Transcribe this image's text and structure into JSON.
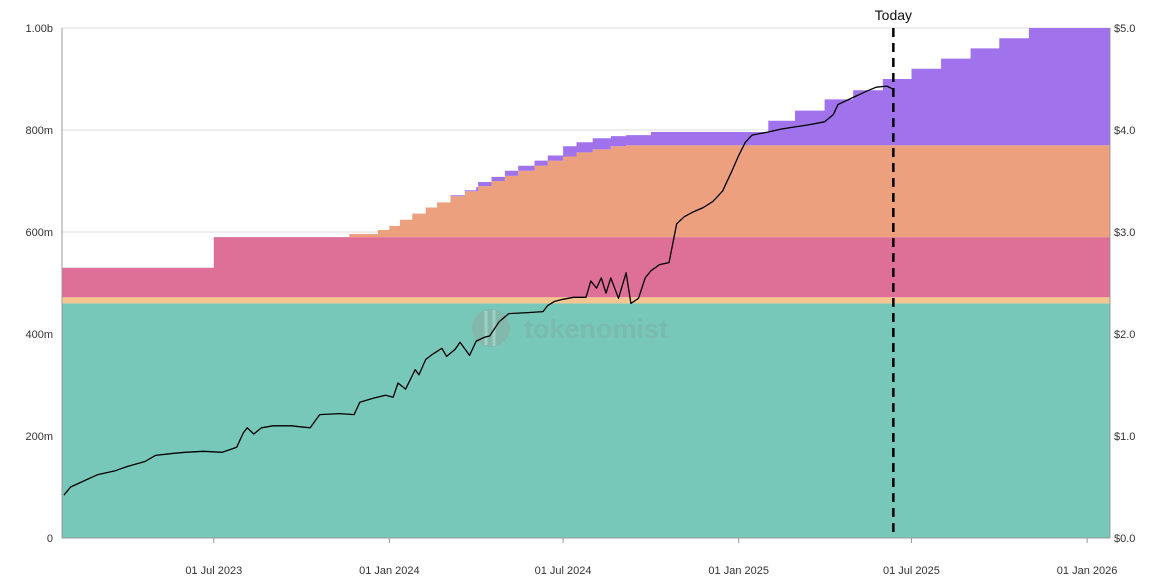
{
  "chart_data": {
    "type": "area",
    "x_axis": {
      "ticks": [
        "01 Jul 2023",
        "01 Jan 2024",
        "01 Jul 2024",
        "01 Jan 2025",
        "01 Jul 2025",
        "01 Jan 2026"
      ],
      "tick_dates": [
        "2023-07-01",
        "2024-01-01",
        "2024-07-01",
        "2025-01-01",
        "2025-07-01",
        "2026-01-01"
      ],
      "range": [
        "2023-01-23",
        "2026-01-25"
      ]
    },
    "y_axis_left": {
      "ticks": [
        "0",
        "200m",
        "400m",
        "600m",
        "800m",
        "1.00b"
      ],
      "tick_values": [
        0,
        200,
        400,
        600,
        800,
        1000
      ],
      "unit": "millions of tokens",
      "range": [
        0,
        1000
      ]
    },
    "y_axis_right": {
      "ticks": [
        "$0.0",
        "$1.0",
        "$2.0",
        "$3.0",
        "$4.0",
        "$5.0"
      ],
      "tick_values": [
        0,
        1,
        2,
        3,
        4,
        5
      ],
      "range": [
        0,
        5
      ]
    },
    "grid": "horizontal",
    "today_marker": {
      "label": "Today",
      "date": "2025-06-12",
      "color": "#000000"
    },
    "watermark": "tokenomist",
    "stacked_series": [
      {
        "color": "#77c8b8",
        "steps": [
          [
            "2023-01-23",
            460
          ]
        ]
      },
      {
        "color": "#f4c58e",
        "steps": [
          [
            "2023-01-23",
            12
          ]
        ]
      },
      {
        "color": "#de6f96",
        "steps": [
          [
            "2023-01-23",
            58
          ],
          [
            "2023-07-01",
            118
          ]
        ]
      },
      {
        "color": "#eda07e",
        "steps": [
          [
            "2023-01-23",
            0
          ],
          [
            "2023-11-20",
            6
          ],
          [
            "2023-12-20",
            14
          ],
          [
            "2024-01-01",
            22
          ],
          [
            "2024-01-12",
            34
          ],
          [
            "2024-01-25",
            46
          ],
          [
            "2024-02-08",
            58
          ],
          [
            "2024-02-20",
            68
          ],
          [
            "2024-03-05",
            80
          ],
          [
            "2024-03-20",
            90
          ],
          [
            "2024-04-03",
            100
          ],
          [
            "2024-04-17",
            110
          ],
          [
            "2024-05-01",
            120
          ],
          [
            "2024-05-15",
            130
          ],
          [
            "2024-06-01",
            140
          ],
          [
            "2024-06-15",
            150
          ],
          [
            "2024-07-01",
            158
          ],
          [
            "2024-07-15",
            166
          ],
          [
            "2024-08-01",
            172
          ],
          [
            "2024-08-20",
            178
          ],
          [
            "2024-09-05",
            180
          ]
        ]
      },
      {
        "color": "#a073ec",
        "steps": [
          [
            "2023-01-23",
            0
          ],
          [
            "2024-03-05",
            2
          ],
          [
            "2024-04-01",
            8
          ],
          [
            "2024-05-01",
            10
          ],
          [
            "2024-07-01",
            20
          ],
          [
            "2024-08-01",
            22
          ],
          [
            "2024-08-20",
            20
          ],
          [
            "2024-09-05",
            20
          ],
          [
            "2024-10-01",
            26
          ],
          [
            "2025-01-15",
            26
          ],
          [
            "2025-02-01",
            48
          ],
          [
            "2025-03-01",
            68
          ],
          [
            "2025-04-01",
            90
          ],
          [
            "2025-05-01",
            108
          ],
          [
            "2025-06-01",
            130
          ],
          [
            "2025-07-01",
            150
          ],
          [
            "2025-08-01",
            170
          ],
          [
            "2025-09-01",
            190
          ],
          [
            "2025-10-01",
            210
          ],
          [
            "2025-11-01",
            230
          ]
        ]
      }
    ],
    "price_series": {
      "axis": "right",
      "color": "#000000",
      "points": [
        [
          "2023-01-25",
          0.42
        ],
        [
          "2023-02-01",
          0.5
        ],
        [
          "2023-02-15",
          0.56
        ],
        [
          "2023-03-01",
          0.62
        ],
        [
          "2023-03-20",
          0.66
        ],
        [
          "2023-04-01",
          0.7
        ],
        [
          "2023-04-20",
          0.75
        ],
        [
          "2023-05-01",
          0.81
        ],
        [
          "2023-05-20",
          0.83
        ],
        [
          "2023-06-01",
          0.84
        ],
        [
          "2023-06-20",
          0.85
        ],
        [
          "2023-07-10",
          0.84
        ],
        [
          "2023-07-25",
          0.89
        ],
        [
          "2023-08-01",
          1.03
        ],
        [
          "2023-08-05",
          1.08
        ],
        [
          "2023-08-12",
          1.02
        ],
        [
          "2023-08-20",
          1.08
        ],
        [
          "2023-09-01",
          1.1
        ],
        [
          "2023-09-20",
          1.1
        ],
        [
          "2023-10-10",
          1.08
        ],
        [
          "2023-10-20",
          1.21
        ],
        [
          "2023-11-10",
          1.22
        ],
        [
          "2023-11-25",
          1.21
        ],
        [
          "2023-12-01",
          1.33
        ],
        [
          "2023-12-15",
          1.37
        ],
        [
          "2023-12-28",
          1.4
        ],
        [
          "2024-01-05",
          1.38
        ],
        [
          "2024-01-10",
          1.52
        ],
        [
          "2024-01-18",
          1.46
        ],
        [
          "2024-01-28",
          1.65
        ],
        [
          "2024-02-01",
          1.6
        ],
        [
          "2024-02-08",
          1.75
        ],
        [
          "2024-02-15",
          1.8
        ],
        [
          "2024-02-25",
          1.86
        ],
        [
          "2024-03-01",
          1.78
        ],
        [
          "2024-03-10",
          1.85
        ],
        [
          "2024-03-15",
          1.92
        ],
        [
          "2024-03-25",
          1.79
        ],
        [
          "2024-04-01",
          1.93
        ],
        [
          "2024-04-10",
          1.97
        ],
        [
          "2024-04-15",
          1.98
        ],
        [
          "2024-04-25",
          2.12
        ],
        [
          "2024-05-05",
          2.2
        ],
        [
          "2024-05-25",
          2.21
        ],
        [
          "2024-06-10",
          2.22
        ],
        [
          "2024-06-15",
          2.28
        ],
        [
          "2024-06-22",
          2.32
        ],
        [
          "2024-07-01",
          2.34
        ],
        [
          "2024-07-12",
          2.36
        ],
        [
          "2024-07-25",
          2.36
        ],
        [
          "2024-07-30",
          2.52
        ],
        [
          "2024-08-05",
          2.45
        ],
        [
          "2024-08-10",
          2.55
        ],
        [
          "2024-08-15",
          2.4
        ],
        [
          "2024-08-20",
          2.55
        ],
        [
          "2024-08-28",
          2.35
        ],
        [
          "2024-09-05",
          2.6
        ],
        [
          "2024-09-10",
          2.3
        ],
        [
          "2024-09-18",
          2.35
        ],
        [
          "2024-09-25",
          2.55
        ],
        [
          "2024-10-01",
          2.62
        ],
        [
          "2024-10-10",
          2.68
        ],
        [
          "2024-10-20",
          2.7
        ],
        [
          "2024-10-28",
          3.08
        ],
        [
          "2024-11-05",
          3.15
        ],
        [
          "2024-11-15",
          3.2
        ],
        [
          "2024-11-25",
          3.24
        ],
        [
          "2024-12-05",
          3.3
        ],
        [
          "2024-12-15",
          3.4
        ],
        [
          "2024-12-25",
          3.6
        ],
        [
          "2025-01-01",
          3.75
        ],
        [
          "2025-01-08",
          3.88
        ],
        [
          "2025-01-15",
          3.95
        ],
        [
          "2025-02-01",
          3.98
        ],
        [
          "2025-02-15",
          4.01
        ],
        [
          "2025-03-01",
          4.03
        ],
        [
          "2025-03-15",
          4.05
        ],
        [
          "2025-04-01",
          4.08
        ],
        [
          "2025-04-10",
          4.15
        ],
        [
          "2025-04-15",
          4.25
        ],
        [
          "2025-05-01",
          4.32
        ],
        [
          "2025-05-15",
          4.38
        ],
        [
          "2025-05-25",
          4.42
        ],
        [
          "2025-06-05",
          4.43
        ],
        [
          "2025-06-12",
          4.4
        ]
      ]
    }
  }
}
